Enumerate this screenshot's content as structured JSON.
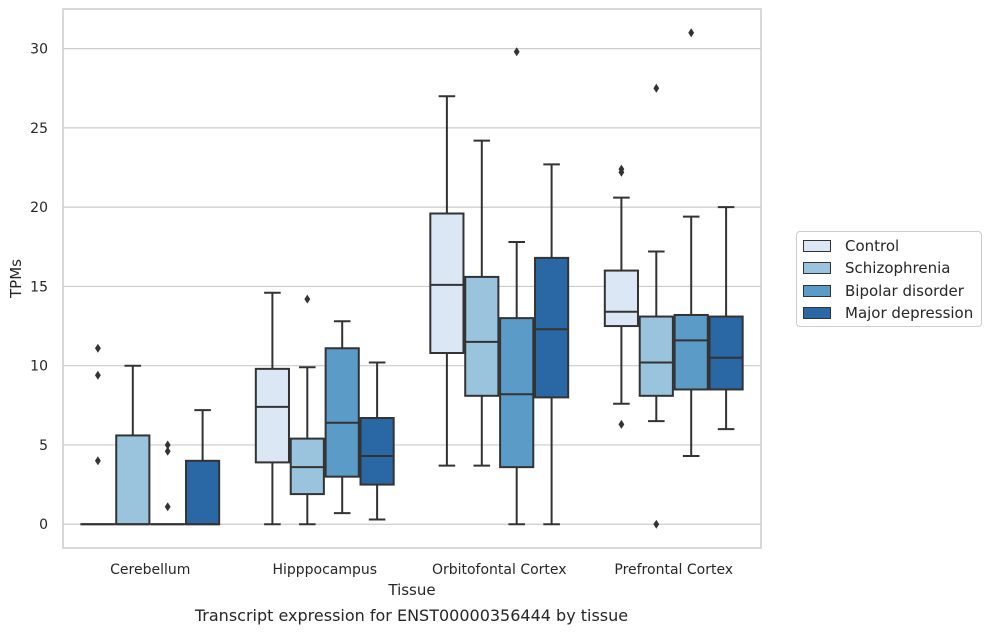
{
  "chart_data": {
    "type": "box",
    "title": "",
    "xlabel": "Tissue",
    "ylabel": "TPMs",
    "caption": "Transcript expression for ENST00000356444 by tissue",
    "categories": [
      "Cerebellum",
      "Hipppocampus",
      "Orbitofontal Cortex",
      "Prefrontal Cortex"
    ],
    "ylim": [
      -1.5,
      32.5
    ],
    "yticks": [
      0,
      5,
      10,
      15,
      20,
      25,
      30
    ],
    "grid": "horizontal",
    "legend_position": "right",
    "colors": {
      "Control": "#dbe7f4",
      "Schizophrenia": "#9ac3dd",
      "Bipolar disorder": "#5b9bc8",
      "Major depression": "#2a67a5",
      "edge": "#333333",
      "grid": "#cccccc",
      "frame": "#cccccc"
    },
    "series": [
      {
        "name": "Control",
        "boxes": [
          {
            "whislo": 0,
            "q1": 0,
            "med": 0,
            "q3": 0,
            "whishi": 0,
            "fliers": [
              4.0,
              9.4,
              11.1
            ]
          },
          {
            "whislo": 0,
            "q1": 3.9,
            "med": 7.4,
            "q3": 9.8,
            "whishi": 14.6,
            "fliers": []
          },
          {
            "whislo": 3.7,
            "q1": 10.8,
            "med": 15.1,
            "q3": 19.6,
            "whishi": 27.0,
            "fliers": []
          },
          {
            "whislo": 7.6,
            "q1": 12.5,
            "med": 13.4,
            "q3": 16.0,
            "whishi": 20.6,
            "fliers": [
              6.3,
              22.2,
              22.4
            ]
          }
        ]
      },
      {
        "name": "Schizophrenia",
        "boxes": [
          {
            "whislo": 0,
            "q1": 0,
            "med": 0,
            "q3": 5.6,
            "whishi": 10.0,
            "fliers": []
          },
          {
            "whislo": 0,
            "q1": 1.9,
            "med": 3.6,
            "q3": 5.4,
            "whishi": 9.9,
            "fliers": [
              14.2
            ]
          },
          {
            "whislo": 3.7,
            "q1": 8.1,
            "med": 11.5,
            "q3": 15.6,
            "whishi": 24.2,
            "fliers": []
          },
          {
            "whislo": 6.5,
            "q1": 8.1,
            "med": 10.2,
            "q3": 13.1,
            "whishi": 17.2,
            "fliers": [
              0,
              27.5
            ]
          }
        ]
      },
      {
        "name": "Bipolar disorder",
        "boxes": [
          {
            "whislo": 0,
            "q1": 0,
            "med": 0,
            "q3": 0,
            "whishi": 0,
            "fliers": [
              1.1,
              4.6,
              5.0
            ]
          },
          {
            "whislo": 0.7,
            "q1": 3.0,
            "med": 6.4,
            "q3": 11.1,
            "whishi": 12.8,
            "fliers": []
          },
          {
            "whislo": 0,
            "q1": 3.6,
            "med": 8.2,
            "q3": 13.0,
            "whishi": 17.8,
            "fliers": [
              29.8
            ]
          },
          {
            "whislo": 4.3,
            "q1": 8.5,
            "med": 11.6,
            "q3": 13.2,
            "whishi": 19.4,
            "fliers": [
              31.0
            ]
          }
        ]
      },
      {
        "name": "Major depression",
        "boxes": [
          {
            "whislo": 0,
            "q1": 0,
            "med": 0,
            "q3": 4.0,
            "whishi": 7.2,
            "fliers": []
          },
          {
            "whislo": 0.3,
            "q1": 2.5,
            "med": 4.3,
            "q3": 6.7,
            "whishi": 10.2,
            "fliers": []
          },
          {
            "whislo": 0,
            "q1": 8.0,
            "med": 12.3,
            "q3": 16.8,
            "whishi": 22.7,
            "fliers": []
          },
          {
            "whislo": 6.0,
            "q1": 8.5,
            "med": 10.5,
            "q3": 13.1,
            "whishi": 20.0,
            "fliers": []
          }
        ]
      }
    ]
  }
}
